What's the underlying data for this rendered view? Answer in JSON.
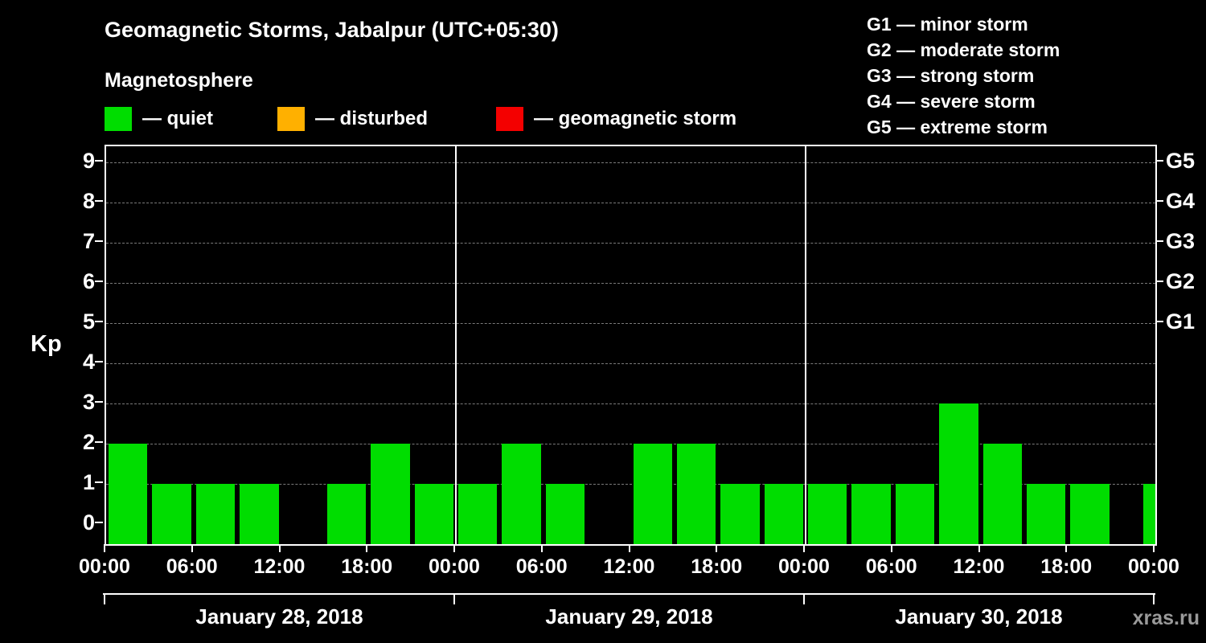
{
  "header": {
    "title": "Geomagnetic Storms, Jabalpur (UTC+05:30)",
    "subtitle": "Magnetosphere"
  },
  "legend": {
    "items": [
      {
        "name": "quiet",
        "label": "— quiet",
        "color": "#00dd00"
      },
      {
        "name": "disturbed",
        "label": "— disturbed",
        "color": "#ffb000"
      },
      {
        "name": "geomagnetic-storm",
        "label": "— geomagnetic storm",
        "color": "#f40000"
      }
    ]
  },
  "storm_scale": {
    "items": [
      "G1 — minor storm",
      "G2 — moderate storm",
      "G3 — strong storm",
      "G4 — severe storm",
      "G5 — extreme storm"
    ]
  },
  "chart_data": {
    "type": "bar",
    "title": "Geomagnetic Storms, Jabalpur (UTC+05:30)",
    "ylabel": "Kp",
    "ylim": [
      -0.5,
      9.4
    ],
    "yticks": [
      0,
      1,
      2,
      3,
      4,
      5,
      6,
      7,
      8,
      9
    ],
    "gridline_levels": [
      1,
      2,
      3,
      4,
      5,
      6,
      7,
      8,
      9
    ],
    "grid": "dashed",
    "bar_color": "#00dd00",
    "interval_hours": 3,
    "right_axis": [
      {
        "kp": 9,
        "label": "G5"
      },
      {
        "kp": 8,
        "label": "G4"
      },
      {
        "kp": 7,
        "label": "G3"
      },
      {
        "kp": 6,
        "label": "G2"
      },
      {
        "kp": 5,
        "label": "G1"
      }
    ],
    "days": [
      {
        "date": "January 28, 2018",
        "kp": [
          2,
          1,
          1,
          1,
          0,
          1,
          2,
          1
        ]
      },
      {
        "date": "January 29, 2018",
        "kp": [
          1,
          2,
          1,
          0,
          2,
          2,
          1,
          1
        ]
      },
      {
        "date": "January 30, 2018",
        "kp": [
          1,
          1,
          1,
          3,
          2,
          1,
          1,
          0
        ]
      }
    ],
    "next_day_edge_kp": 1,
    "time_labels": [
      "00:00",
      "06:00",
      "12:00",
      "18:00",
      "00:00",
      "06:00",
      "12:00",
      "18:00",
      "00:00",
      "06:00",
      "12:00",
      "18:00",
      "00:00"
    ]
  },
  "watermark": "xras.ru"
}
